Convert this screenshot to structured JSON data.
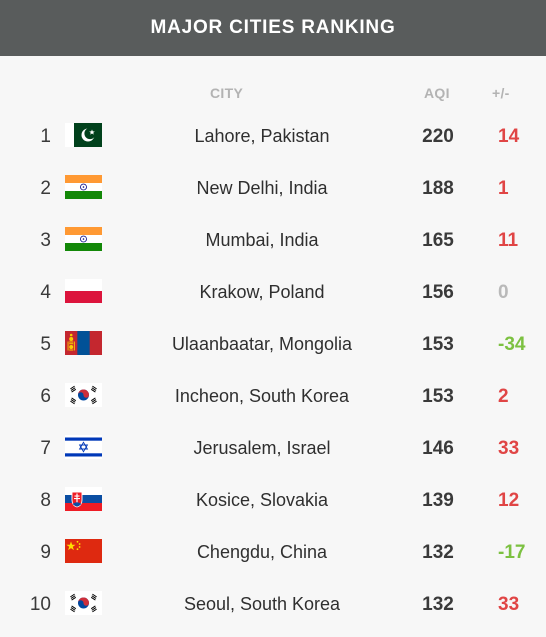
{
  "header": {
    "title": "MAJOR CITIES RANKING"
  },
  "columns": {
    "city": "CITY",
    "aqi": "AQI",
    "change": "+/-"
  },
  "colors": {
    "up": "#e04545",
    "down": "#7cc141",
    "neutral": "#b9b9b9",
    "header_bg": "#595c5c"
  },
  "rows": [
    {
      "rank": "1",
      "flag": "pakistan-flag-icon",
      "city": "Lahore, Pakistan",
      "aqi": "220",
      "change": "14",
      "trend": "up"
    },
    {
      "rank": "2",
      "flag": "india-flag-icon",
      "city": "New Delhi, India",
      "aqi": "188",
      "change": "1",
      "trend": "up"
    },
    {
      "rank": "3",
      "flag": "india-flag-icon",
      "city": "Mumbai, India",
      "aqi": "165",
      "change": "11",
      "trend": "up"
    },
    {
      "rank": "4",
      "flag": "poland-flag-icon",
      "city": "Krakow, Poland",
      "aqi": "156",
      "change": "0",
      "trend": "neutral"
    },
    {
      "rank": "5",
      "flag": "mongolia-flag-icon",
      "city": "Ulaanbaatar, Mongolia",
      "aqi": "153",
      "change": "-34",
      "trend": "down"
    },
    {
      "rank": "6",
      "flag": "south-korea-flag-icon",
      "city": "Incheon, South Korea",
      "aqi": "153",
      "change": "2",
      "trend": "up"
    },
    {
      "rank": "7",
      "flag": "israel-flag-icon",
      "city": "Jerusalem, Israel",
      "aqi": "146",
      "change": "33",
      "trend": "up"
    },
    {
      "rank": "8",
      "flag": "slovakia-flag-icon",
      "city": "Kosice, Slovakia",
      "aqi": "139",
      "change": "12",
      "trend": "up"
    },
    {
      "rank": "9",
      "flag": "china-flag-icon",
      "city": "Chengdu, China",
      "aqi": "132",
      "change": "-17",
      "trend": "down"
    },
    {
      "rank": "10",
      "flag": "south-korea-flag-icon",
      "city": "Seoul, South Korea",
      "aqi": "132",
      "change": "33",
      "trend": "up"
    }
  ]
}
